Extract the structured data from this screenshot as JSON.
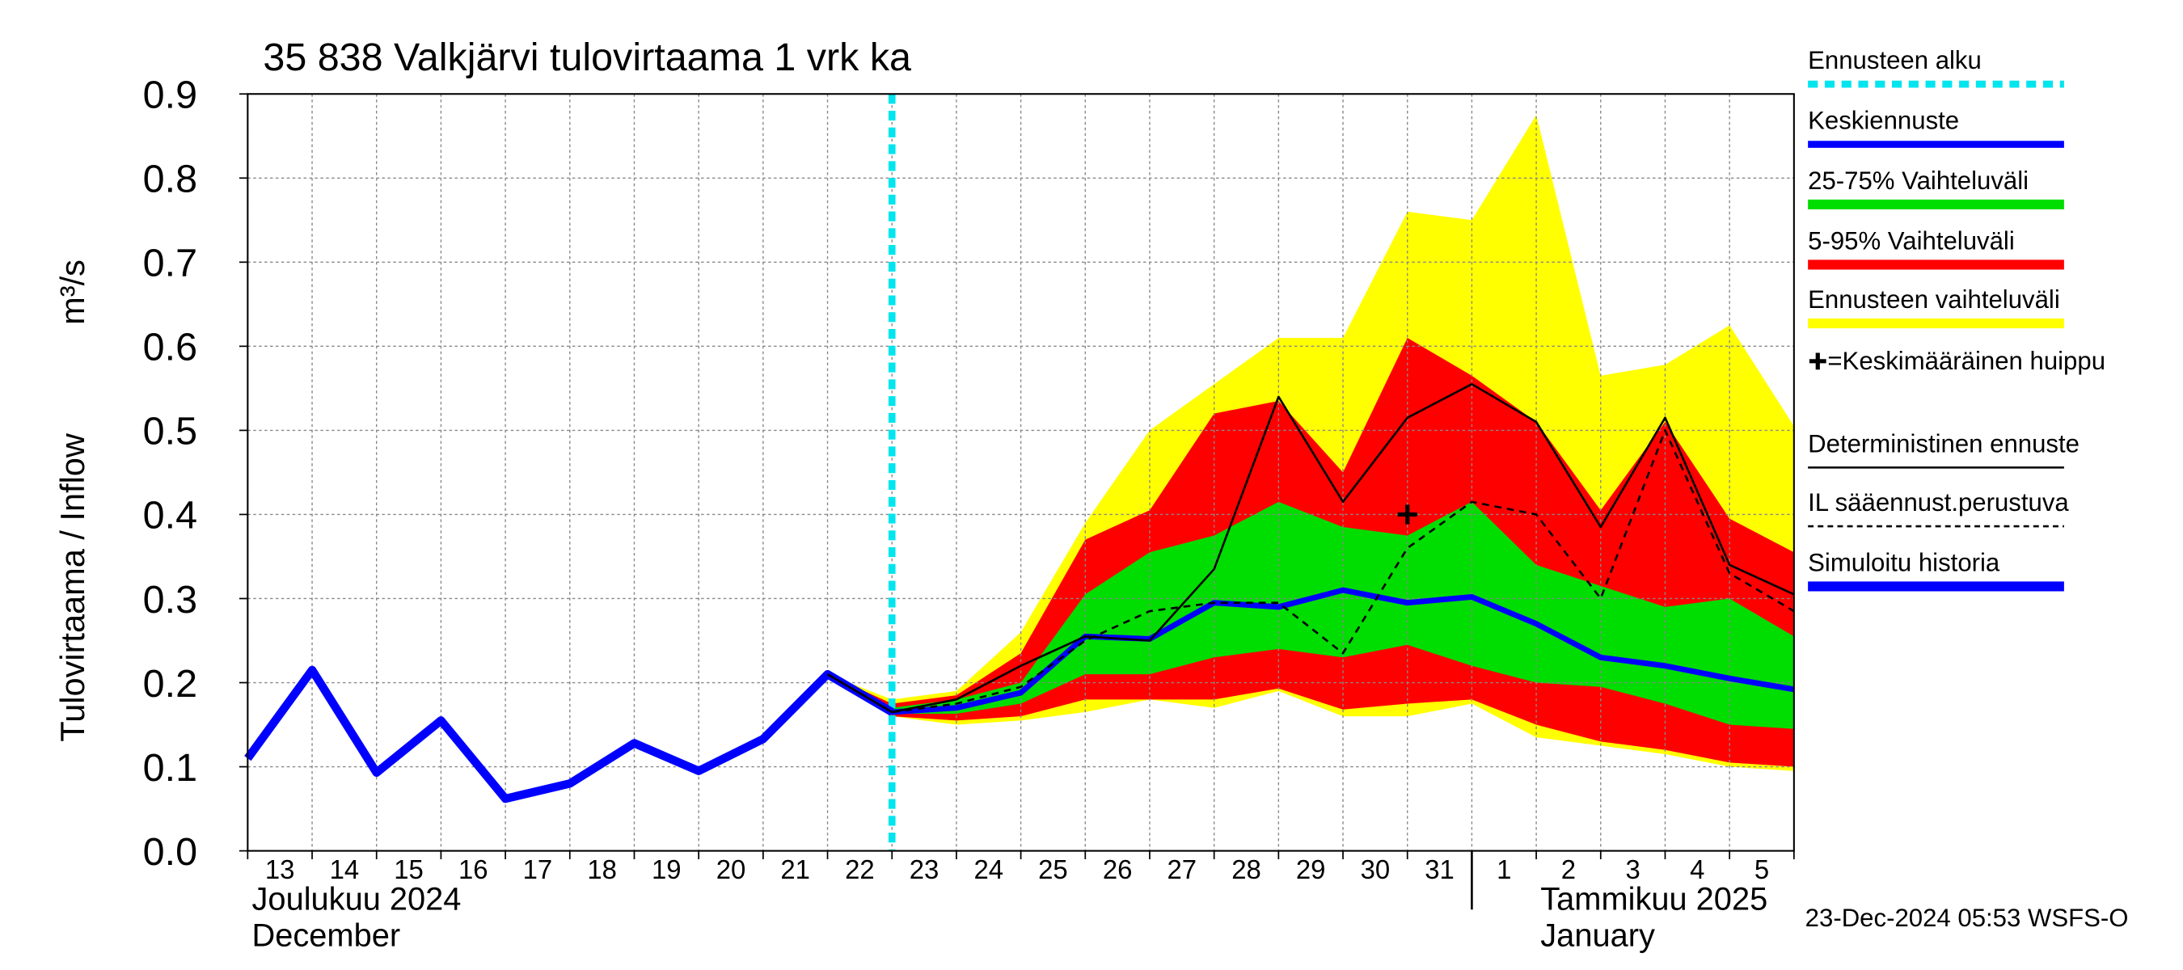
{
  "chart_data": {
    "type": "line",
    "title": "35 838 Valkjärvi tulovirtaama 1 vrk ka",
    "ylabel": "Tulovirtaama / Inflow",
    "yunit": "m³/s",
    "categories": [
      "13",
      "14",
      "15",
      "16",
      "17",
      "18",
      "19",
      "20",
      "21",
      "22",
      "23",
      "24",
      "25",
      "26",
      "27",
      "28",
      "29",
      "30",
      "31",
      "1",
      "2",
      "3",
      "4",
      "5",
      null
    ],
    "month_labels": [
      [
        "Joulukuu  2024",
        "December"
      ],
      [
        "Tammikuu  2025",
        "January"
      ]
    ],
    "ylim": [
      0,
      0.9
    ],
    "yticks": [
      {
        "value": 0,
        "label": "0.0"
      },
      0.1,
      0.2,
      0.3,
      0.4,
      0.5,
      0.6,
      0.7,
      0.8,
      0.9
    ],
    "grid": true,
    "forecast_start": {
      "name": "Ennusteen alku",
      "category": "23",
      "color": "#00e5ee"
    },
    "bands": [
      {
        "name": "Ennusteen vaihteluväli",
        "color": "#ffff00",
        "upper": [
          null,
          null,
          null,
          null,
          null,
          null,
          null,
          null,
          null,
          0.21,
          0.18,
          0.19,
          0.26,
          0.39,
          0.5,
          0.555,
          0.61,
          0.61,
          0.76,
          0.75,
          0.875,
          0.565,
          0.578,
          0.625,
          0.505
        ],
        "lower": [
          null,
          null,
          null,
          null,
          null,
          null,
          null,
          null,
          null,
          0.21,
          0.16,
          0.15,
          0.155,
          0.165,
          0.18,
          0.17,
          0.19,
          0.16,
          0.16,
          0.175,
          0.135,
          0.125,
          0.115,
          0.1,
          0.095
        ]
      },
      {
        "name": "5-95% Vaihteluväli",
        "color": "#ff0000",
        "upper": [
          null,
          null,
          null,
          null,
          null,
          null,
          null,
          null,
          null,
          0.21,
          0.175,
          0.185,
          0.235,
          0.37,
          0.405,
          0.52,
          0.535,
          0.45,
          0.61,
          0.565,
          0.51,
          0.405,
          0.51,
          0.395,
          0.355
        ],
        "lower": [
          null,
          null,
          null,
          null,
          null,
          null,
          null,
          null,
          null,
          0.21,
          0.16,
          0.155,
          0.16,
          0.18,
          0.18,
          0.18,
          0.193,
          0.168,
          0.175,
          0.18,
          0.15,
          0.13,
          0.12,
          0.105,
          0.1
        ]
      },
      {
        "name": "25-75% Vaihteluväli",
        "color": "#00dd00",
        "upper": [
          null,
          null,
          null,
          null,
          null,
          null,
          null,
          null,
          null,
          0.21,
          0.17,
          0.18,
          0.2,
          0.305,
          0.355,
          0.375,
          0.415,
          0.385,
          0.375,
          0.415,
          0.34,
          0.315,
          0.29,
          0.3,
          0.255
        ],
        "lower": [
          null,
          null,
          null,
          null,
          null,
          null,
          null,
          null,
          null,
          0.21,
          0.163,
          0.163,
          0.175,
          0.21,
          0.21,
          0.23,
          0.24,
          0.23,
          0.245,
          0.22,
          0.2,
          0.195,
          0.175,
          0.15,
          0.145
        ]
      }
    ],
    "series": [
      {
        "name": "Keskiennuste",
        "color": "#0000ff",
        "width": 4,
        "dashed": false,
        "values": [
          null,
          null,
          null,
          null,
          null,
          null,
          null,
          null,
          null,
          0.21,
          0.165,
          0.17,
          0.188,
          0.255,
          0.252,
          0.295,
          0.29,
          0.31,
          0.295,
          0.302,
          0.27,
          0.23,
          0.22,
          0.205,
          0.192
        ]
      },
      {
        "name": "Deterministinen ennuste",
        "color": "#000000",
        "width": 1.5,
        "dashed": false,
        "values": [
          null,
          null,
          null,
          null,
          null,
          null,
          null,
          null,
          null,
          0.21,
          0.165,
          0.18,
          0.22,
          0.255,
          0.25,
          0.335,
          0.54,
          0.415,
          0.515,
          0.555,
          0.51,
          0.385,
          0.515,
          0.34,
          0.305
        ]
      },
      {
        "name": "IL sääennust.perustuva",
        "color": "#000000",
        "width": 1.5,
        "dashed": true,
        "values": [
          null,
          null,
          null,
          null,
          null,
          null,
          null,
          null,
          null,
          0.21,
          0.165,
          0.175,
          0.195,
          0.25,
          0.285,
          0.295,
          0.295,
          0.235,
          0.36,
          0.415,
          0.4,
          0.3,
          0.5,
          0.33,
          0.285
        ]
      },
      {
        "name": "Simuloitu historia",
        "color": "#0000ff",
        "width": 6,
        "dashed": false,
        "values": [
          0.11,
          0.215,
          0.093,
          0.155,
          0.062,
          0.08,
          0.128,
          0.095,
          0.133,
          0.21,
          0.165,
          null,
          null,
          null,
          null,
          null,
          null,
          null,
          null,
          null,
          null,
          null,
          null,
          null,
          null
        ]
      }
    ],
    "peak": {
      "name": "=Keskimääräinen huippu",
      "category": "31",
      "value": 0.4
    },
    "footer": "23-Dec-2024 05:53 WSFS-O"
  }
}
